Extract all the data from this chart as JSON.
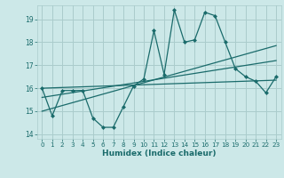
{
  "xlabel": "Humidex (Indice chaleur)",
  "background_color": "#cce8e8",
  "grid_color": "#aacccc",
  "line_color": "#1a6b6b",
  "xlim": [
    -0.5,
    23.5
  ],
  "ylim": [
    13.8,
    19.6
  ],
  "yticks": [
    14,
    15,
    16,
    17,
    18,
    19
  ],
  "xticks": [
    0,
    1,
    2,
    3,
    4,
    5,
    6,
    7,
    8,
    9,
    10,
    11,
    12,
    13,
    14,
    15,
    16,
    17,
    18,
    19,
    20,
    21,
    22,
    23
  ],
  "main_line": [
    16.0,
    14.8,
    15.9,
    15.9,
    15.9,
    14.7,
    14.3,
    14.3,
    15.2,
    16.1,
    16.4,
    18.5,
    16.6,
    19.4,
    18.0,
    18.1,
    19.3,
    19.15,
    18.0,
    16.85,
    16.5,
    16.3,
    15.8,
    16.5
  ],
  "trend_line1_x": [
    0,
    23
  ],
  "trend_line1_y": [
    16.0,
    16.35
  ],
  "trend_line2_x": [
    0,
    23
  ],
  "trend_line2_y": [
    15.0,
    17.85
  ],
  "trend_line3_x": [
    0,
    23
  ],
  "trend_line3_y": [
    15.6,
    17.2
  ]
}
